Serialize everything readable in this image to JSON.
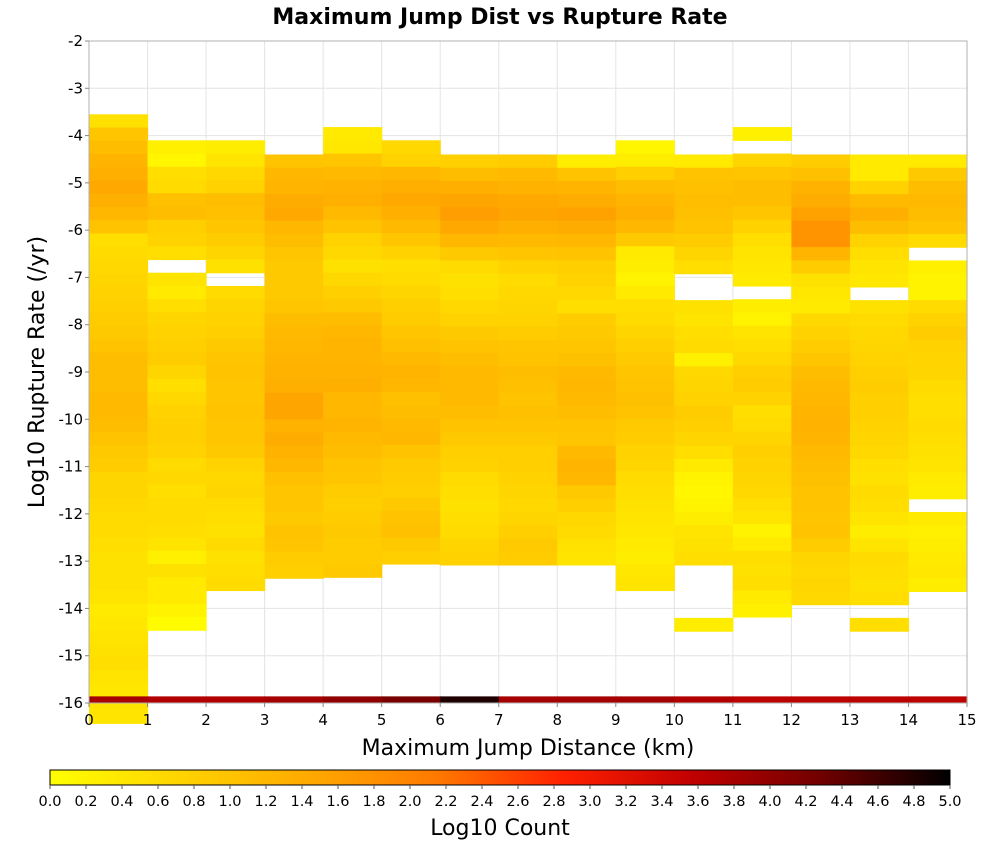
{
  "chart_data": {
    "type": "heatmap",
    "title": "Maximum Jump Dist vs Rupture Rate",
    "xlabel": "Maximum Jump Distance (km)",
    "ylabel": "Log10 Rupture Rate (/yr)",
    "xlim": [
      0,
      15
    ],
    "ylim": [
      -16,
      -2
    ],
    "x_ticks": [
      "0",
      "1",
      "2",
      "3",
      "4",
      "5",
      "6",
      "7",
      "8",
      "9",
      "10",
      "11",
      "12",
      "13",
      "14",
      "15"
    ],
    "y_ticks": [
      "-2",
      "-3",
      "-4",
      "-5",
      "-6",
      "-7",
      "-8",
      "-9",
      "-10",
      "-11",
      "-12",
      "-13",
      "-14",
      "-15",
      "-16"
    ],
    "x_bin_width": 1,
    "y_bin_height": 0.28,
    "colorbar": {
      "label": "Log10 Count",
      "min": 0.0,
      "max": 5.0,
      "ticks": [
        "0.0",
        "0.2",
        "0.4",
        "0.6",
        "0.8",
        "1.0",
        "1.2",
        "1.4",
        "1.6",
        "1.8",
        "2.0",
        "2.2",
        "2.4",
        "2.6",
        "2.8",
        "3.0",
        "3.2",
        "3.4",
        "3.6",
        "3.8",
        "4.0",
        "4.2",
        "4.4",
        "4.6",
        "4.8",
        "5.0"
      ],
      "colors": [
        "#ffff00",
        "#ffd400",
        "#ffaa00",
        "#ff7a00",
        "#ff2000",
        "#c00000",
        "#700000",
        "#000000"
      ]
    },
    "bottom_row": {
      "y_center": -15.93,
      "values": [
        3.8,
        3.7,
        3.7,
        3.8,
        4.0,
        4.2,
        4.8,
        3.8,
        3.8,
        3.8,
        3.7,
        3.6,
        3.6,
        3.6,
        3.6
      ]
    },
    "columns": [
      {
        "x_center": 0.5,
        "y_top": -3.55,
        "values": [
          0.5,
          0.95,
          1.1,
          1.25,
          1.35,
          1.45,
          1.35,
          1.2,
          1.0,
          0.55,
          0.6,
          0.65,
          0.7,
          0.75,
          0.8,
          0.85,
          0.9,
          1.0,
          1.1,
          1.1,
          1.1,
          1.15,
          1.15,
          1.1,
          1.0,
          0.9,
          0.85,
          0.7,
          0.7,
          0.65,
          0.6,
          0.6,
          0.55,
          0.5,
          0.5,
          0.5,
          0.45,
          0.35,
          0.4,
          0.45,
          0.5,
          0.55,
          0.45,
          0.4,
          0.5,
          0.45
        ]
      },
      {
        "x_center": 1.5,
        "y_top": -4.1,
        "values": [
          0.25,
          0.15,
          0.55,
          0.6,
          1.05,
          1.1,
          0.8,
          0.75,
          0.55,
          null,
          0.45,
          0.35,
          0.55,
          0.7,
          0.75,
          0.8,
          0.85,
          0.7,
          0.55,
          0.65,
          0.75,
          0.8,
          0.8,
          0.75,
          0.6,
          0.65,
          0.55,
          0.6,
          0.6,
          0.55,
          0.45,
          0.25,
          0.5,
          0.35,
          0.35,
          0.2,
          0.05
        ]
      },
      {
        "x_center": 2.5,
        "y_top": -4.1,
        "values": [
          0.3,
          0.45,
          0.65,
          0.75,
          1.1,
          1.05,
          0.95,
          0.85,
          0.7,
          0.5,
          null,
          0.6,
          0.7,
          0.75,
          0.8,
          0.9,
          0.95,
          1.0,
          0.95,
          0.95,
          1.0,
          0.95,
          0.95,
          0.9,
          0.75,
          0.65,
          0.7,
          0.6,
          0.55,
          0.5,
          0.6,
          0.5,
          0.55,
          0.6
        ]
      },
      {
        "x_center": 3.5,
        "y_top": -4.4,
        "values": [
          1.0,
          1.2,
          1.25,
          1.4,
          1.45,
          1.2,
          1.1,
          0.95,
          0.9,
          0.9,
          0.9,
          0.95,
          1.1,
          1.15,
          1.2,
          1.25,
          1.3,
          1.35,
          1.5,
          1.5,
          1.3,
          1.4,
          1.3,
          1.2,
          1.05,
          0.95,
          0.95,
          0.9,
          1.0,
          0.95,
          0.85,
          0.8
        ]
      },
      {
        "x_center": 4.5,
        "y_top": -3.82,
        "values": [
          0.35,
          0.4,
          0.95,
          1.15,
          1.3,
          1.35,
          1.15,
          1.0,
          0.75,
          0.65,
          0.5,
          0.65,
          0.8,
          0.9,
          1.1,
          1.2,
          1.25,
          1.25,
          1.3,
          1.35,
          1.2,
          1.2,
          1.25,
          1.15,
          1.1,
          1.0,
          0.95,
          0.85,
          0.8,
          0.85,
          0.9,
          0.85,
          0.85,
          0.9
        ]
      },
      {
        "x_center": 5.5,
        "y_top": -4.1,
        "values": [
          0.65,
          0.75,
          1.2,
          1.35,
          1.45,
          1.35,
          1.15,
          0.95,
          0.75,
          0.55,
          0.6,
          0.7,
          0.8,
          0.85,
          0.95,
          1.05,
          1.15,
          1.25,
          1.2,
          1.05,
          1.1,
          1.15,
          1.2,
          1.0,
          0.9,
          0.85,
          0.8,
          0.9,
          1.0,
          1.05,
          0.9,
          0.8
        ]
      },
      {
        "x_center": 6.5,
        "y_top": -4.4,
        "values": [
          0.8,
          1.1,
          1.35,
          1.5,
          1.6,
          1.45,
          1.2,
          0.9,
          0.6,
          0.5,
          0.55,
          0.65,
          0.75,
          0.9,
          1.0,
          1.1,
          1.15,
          1.15,
          1.15,
          1.1,
          1.0,
          0.9,
          0.8,
          0.75,
          0.6,
          0.55,
          0.5,
          0.55,
          0.6,
          0.7,
          0.75
        ]
      },
      {
        "x_center": 7.5,
        "y_top": -4.4,
        "values": [
          0.85,
          1.15,
          1.3,
          1.45,
          1.5,
          1.35,
          1.15,
          0.95,
          0.75,
          0.6,
          0.65,
          0.7,
          0.75,
          0.85,
          0.95,
          1.0,
          1.1,
          1.05,
          1.0,
          1.05,
          1.0,
          0.9,
          0.8,
          0.8,
          0.75,
          0.7,
          0.65,
          0.7,
          0.8,
          0.9,
          0.85
        ]
      },
      {
        "x_center": 8.5,
        "y_top": -4.4,
        "values": [
          0.3,
          1.0,
          1.25,
          1.4,
          1.55,
          1.4,
          1.2,
          1.0,
          0.8,
          0.75,
          0.65,
          0.55,
          0.85,
          0.9,
          0.95,
          1.05,
          1.15,
          1.2,
          1.15,
          1.1,
          1.0,
          0.95,
          1.15,
          1.25,
          1.2,
          0.9,
          0.8,
          0.65,
          0.6,
          0.5,
          0.45
        ]
      },
      {
        "x_center": 9.5,
        "y_top": -4.1,
        "values": [
          0.15,
          0.3,
          0.8,
          1.1,
          1.25,
          1.35,
          1.2,
          0.9,
          0.35,
          0.3,
          0.2,
          0.35,
          0.55,
          0.6,
          0.7,
          0.8,
          0.9,
          0.95,
          1.0,
          1.05,
          1.0,
          0.9,
          0.85,
          0.75,
          0.7,
          0.6,
          0.55,
          0.5,
          0.45,
          0.4,
          0.35,
          0.3,
          0.4,
          0.45,
          null
        ]
      },
      {
        "x_center": 10.5,
        "y_top": -4.4,
        "values": [
          0.35,
          1.0,
          1.05,
          1.1,
          1.05,
          1.0,
          0.85,
          0.7,
          0.55,
          null,
          null,
          0.5,
          0.45,
          0.55,
          0.6,
          0.25,
          0.65,
          0.7,
          0.75,
          0.85,
          0.8,
          0.7,
          0.55,
          0.35,
          0.2,
          0.15,
          0.2,
          0.3,
          0.45,
          0.5,
          0.55,
          null,
          null,
          null,
          null,
          0.3
        ]
      },
      {
        "x_center": 11.5,
        "y_top": -3.82,
        "values": [
          0.25,
          null,
          0.7,
          0.95,
          1.1,
          1.1,
          0.95,
          0.75,
          0.55,
          0.45,
          0.4,
          0.35,
          null,
          0.3,
          0.2,
          0.45,
          0.55,
          0.65,
          0.8,
          0.85,
          0.75,
          0.55,
          0.6,
          0.7,
          0.8,
          0.75,
          0.7,
          0.65,
          0.55,
          0.45,
          0.2,
          0.35,
          0.55,
          0.5,
          0.55,
          0.35,
          0.25
        ]
      },
      {
        "x_center": 12.5,
        "y_top": -4.4,
        "values": [
          0.85,
          1.05,
          1.3,
          1.4,
          1.55,
          1.75,
          1.75,
          1.25,
          0.85,
          0.5,
          0.4,
          0.35,
          0.65,
          0.75,
          0.85,
          0.95,
          1.1,
          1.15,
          1.2,
          1.25,
          1.3,
          1.25,
          1.15,
          1.1,
          1.05,
          1.0,
          1.0,
          0.95,
          1.0,
          0.85,
          0.7,
          0.65,
          0.7,
          0.65
        ]
      },
      {
        "x_center": 13.5,
        "y_top": -4.4,
        "values": [
          0.35,
          0.35,
          0.75,
          1.15,
          1.35,
          1.1,
          0.75,
          0.55,
          0.45,
          0.4,
          null,
          0.5,
          0.6,
          0.65,
          0.7,
          0.75,
          0.8,
          0.85,
          0.8,
          0.8,
          0.75,
          0.7,
          0.65,
          0.55,
          0.5,
          0.6,
          0.55,
          0.45,
          0.3,
          0.45,
          0.6,
          0.55,
          0.5,
          0.55,
          null,
          0.55
        ]
      },
      {
        "x_center": 14.5,
        "y_top": -4.4,
        "values": [
          0.35,
          0.9,
          1.1,
          1.15,
          1.1,
          1.0,
          0.6,
          null,
          0.25,
          0.2,
          0.2,
          0.6,
          0.75,
          0.85,
          0.75,
          0.7,
          0.7,
          0.6,
          0.55,
          0.55,
          0.6,
          0.55,
          0.5,
          0.45,
          0.35,
          0.3,
          null,
          0.35,
          0.25,
          0.3,
          0.35,
          0.4,
          0.3,
          null
        ]
      }
    ]
  }
}
